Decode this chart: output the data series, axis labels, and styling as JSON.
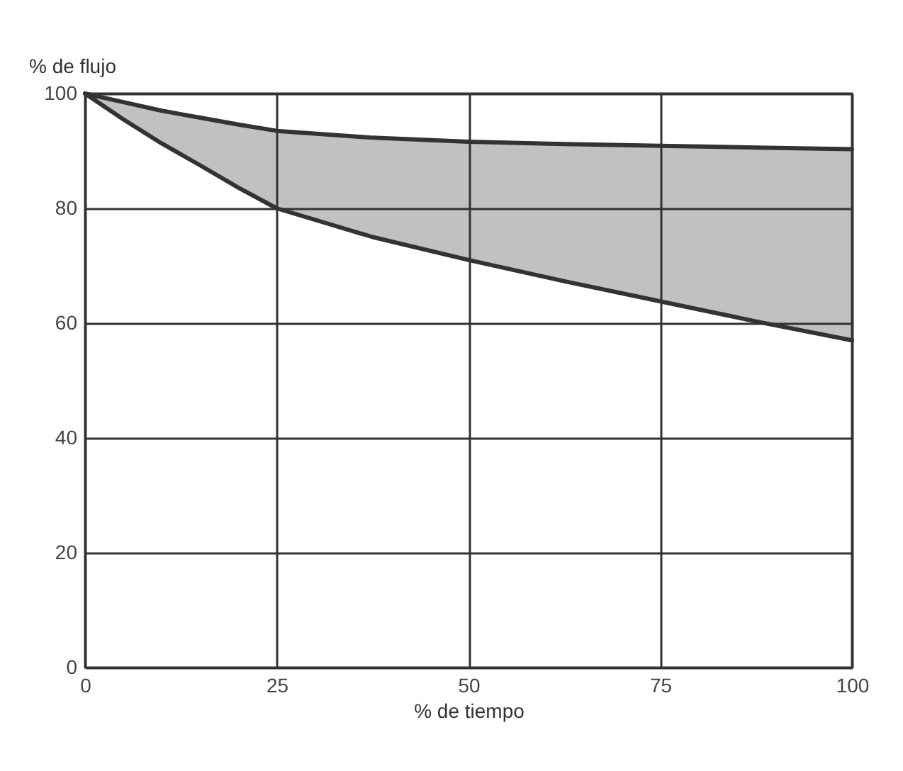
{
  "chart_data": {
    "type": "line",
    "xlabel": "% de tiempo",
    "ylabel": "% de flujo",
    "x": [
      0,
      5,
      10,
      15,
      20,
      25,
      37.5,
      50,
      62.5,
      75,
      87.5,
      100
    ],
    "series": [
      {
        "color": "#333333",
        "values": [
          100,
          98.5,
          97,
          95.8,
          94.6,
          93.5,
          92.3,
          91.6,
          91.2,
          90.9,
          90.6,
          90.3
        ],
        "lower": [
          100,
          95.5,
          91.3,
          87.5,
          83.6,
          80,
          75,
          71,
          67.3,
          63.8,
          60.3,
          57
        ],
        "upper": [
          100,
          98.5,
          97,
          95.8,
          94.6,
          93.5,
          92.3,
          91.6,
          91.2,
          90.9,
          90.6,
          90.3
        ]
      },
      {
        "color": "#333333",
        "values": [
          100,
          95.5,
          91.3,
          87.5,
          83.6,
          80,
          75,
          71,
          67.3,
          63.8,
          60.3,
          57
        ]
      }
    ],
    "xlim": [
      0,
      100
    ],
    "xticks": [
      0,
      25,
      50,
      75,
      100
    ],
    "ylim": [
      0,
      100
    ],
    "yticks": [
      0,
      20,
      40,
      60,
      80,
      100
    ],
    "grid": true,
    "marker": "none",
    "line_style": "solid"
  }
}
